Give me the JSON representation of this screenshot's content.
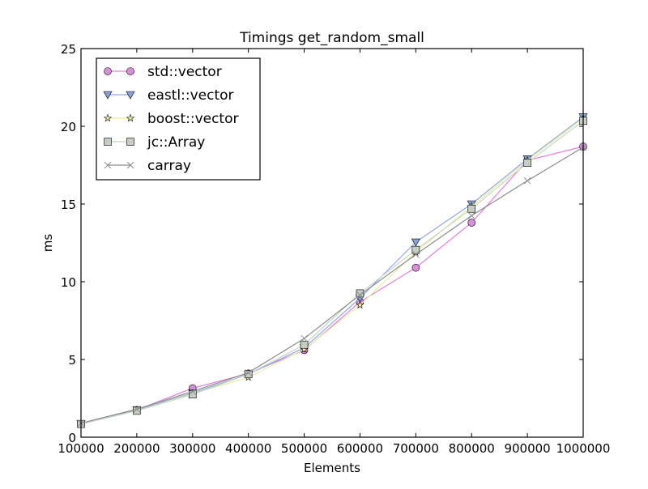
{
  "chart_data": {
    "type": "line",
    "title": "Timings get_random_small",
    "xlabel": "Elements",
    "ylabel": "ms",
    "xlim": [
      100000,
      1000000
    ],
    "ylim": [
      0,
      25
    ],
    "grid": false,
    "legend_position": "upper left",
    "x": [
      100000,
      200000,
      300000,
      400000,
      500000,
      600000,
      700000,
      800000,
      900000,
      1000000
    ],
    "x_ticks": [
      "100000",
      "200000",
      "300000",
      "400000",
      "500000",
      "600000",
      "700000",
      "800000",
      "900000",
      "1000000"
    ],
    "y_ticks": [
      "0",
      "5",
      "10",
      "15",
      "20",
      "25"
    ],
    "series": [
      {
        "name": "std::vector",
        "marker": "circle",
        "color": "#e07ee0",
        "fill": "#d98ed9",
        "values": [
          0.85,
          1.75,
          3.15,
          4.1,
          5.6,
          8.7,
          10.9,
          13.8,
          17.8,
          18.7
        ]
      },
      {
        "name": "eastl::vector",
        "marker": "triangle-down",
        "color": "#8fa8e0",
        "fill": "#8aa3d6",
        "values": [
          0.85,
          1.75,
          2.85,
          4.05,
          5.75,
          8.95,
          12.55,
          15.0,
          17.9,
          20.6
        ]
      },
      {
        "name": "boost::vector",
        "marker": "star",
        "color": "#e6eda0",
        "fill": "#f5f5a0",
        "values": [
          0.85,
          1.7,
          2.8,
          3.85,
          5.65,
          8.5,
          11.9,
          14.85,
          17.8,
          20.5
        ]
      },
      {
        "name": "jc::Array",
        "marker": "square",
        "color": "#c8d4c8",
        "fill": "#c6cec3",
        "values": [
          0.85,
          1.7,
          2.75,
          4.05,
          5.95,
          9.25,
          12.05,
          14.7,
          17.65,
          20.35
        ]
      },
      {
        "name": "carray",
        "marker": "x",
        "color": "#8c8c8c",
        "fill": "#8c8c8c",
        "values": [
          0.9,
          1.8,
          2.95,
          4.15,
          6.35,
          9.15,
          11.75,
          14.25,
          16.5,
          18.65
        ]
      }
    ]
  }
}
